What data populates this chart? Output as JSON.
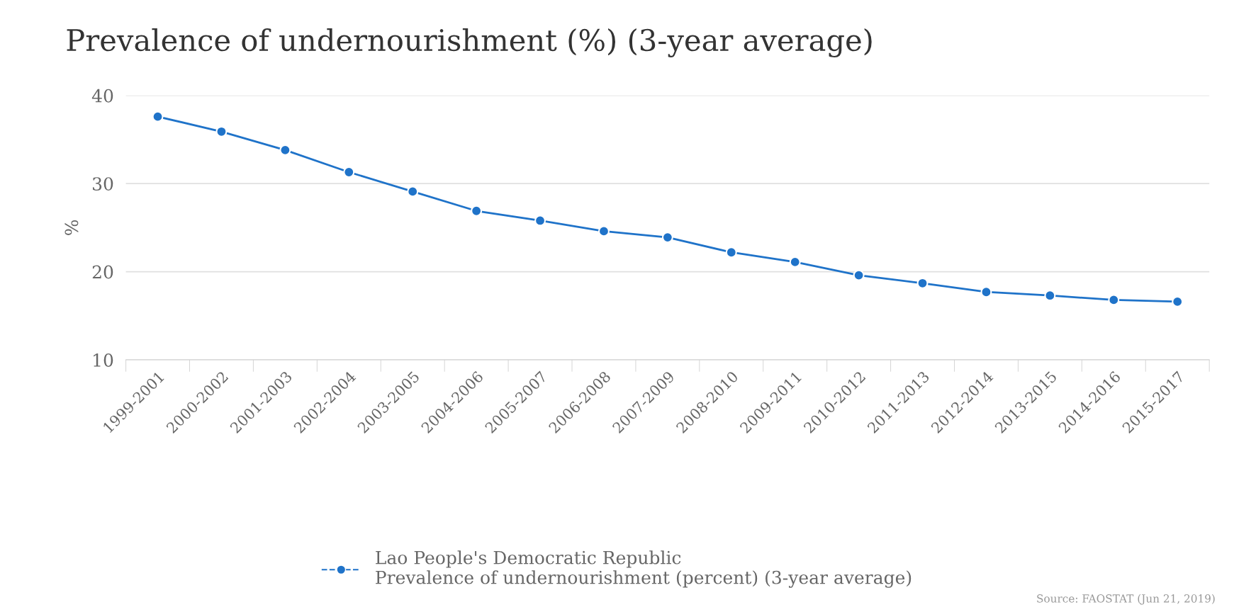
{
  "chart_data": {
    "type": "line",
    "title": "Prevalence of undernourishment (%) (3-year average)",
    "ylabel": "%",
    "categories": [
      "1999-2001",
      "2000-2002",
      "2001-2003",
      "2002-2004",
      "2003-2005",
      "2004-2006",
      "2005-2007",
      "2006-2008",
      "2007-2009",
      "2008-2010",
      "2009-2011",
      "2010-2012",
      "2011-2013",
      "2012-2014",
      "2013-2015",
      "2014-2016",
      "2015-2017"
    ],
    "series": [
      {
        "name": "Lao People's Democratic Republic\nPrevalence of undernourishment (percent) (3-year average)",
        "color": "#1f73c9",
        "values": [
          37.6,
          35.9,
          33.8,
          31.3,
          29.1,
          26.9,
          25.8,
          24.6,
          23.9,
          22.2,
          21.1,
          19.6,
          18.7,
          17.7,
          17.3,
          16.8,
          16.6
        ]
      }
    ],
    "ylim": [
      10,
      40
    ],
    "yticks": [
      10,
      20,
      30,
      40
    ],
    "grid": "y",
    "legend": "bottom",
    "marker": "circle",
    "line_style": "solid",
    "annotations": [
      "Source: FAOSTAT (Jun 21, 2019)"
    ]
  }
}
